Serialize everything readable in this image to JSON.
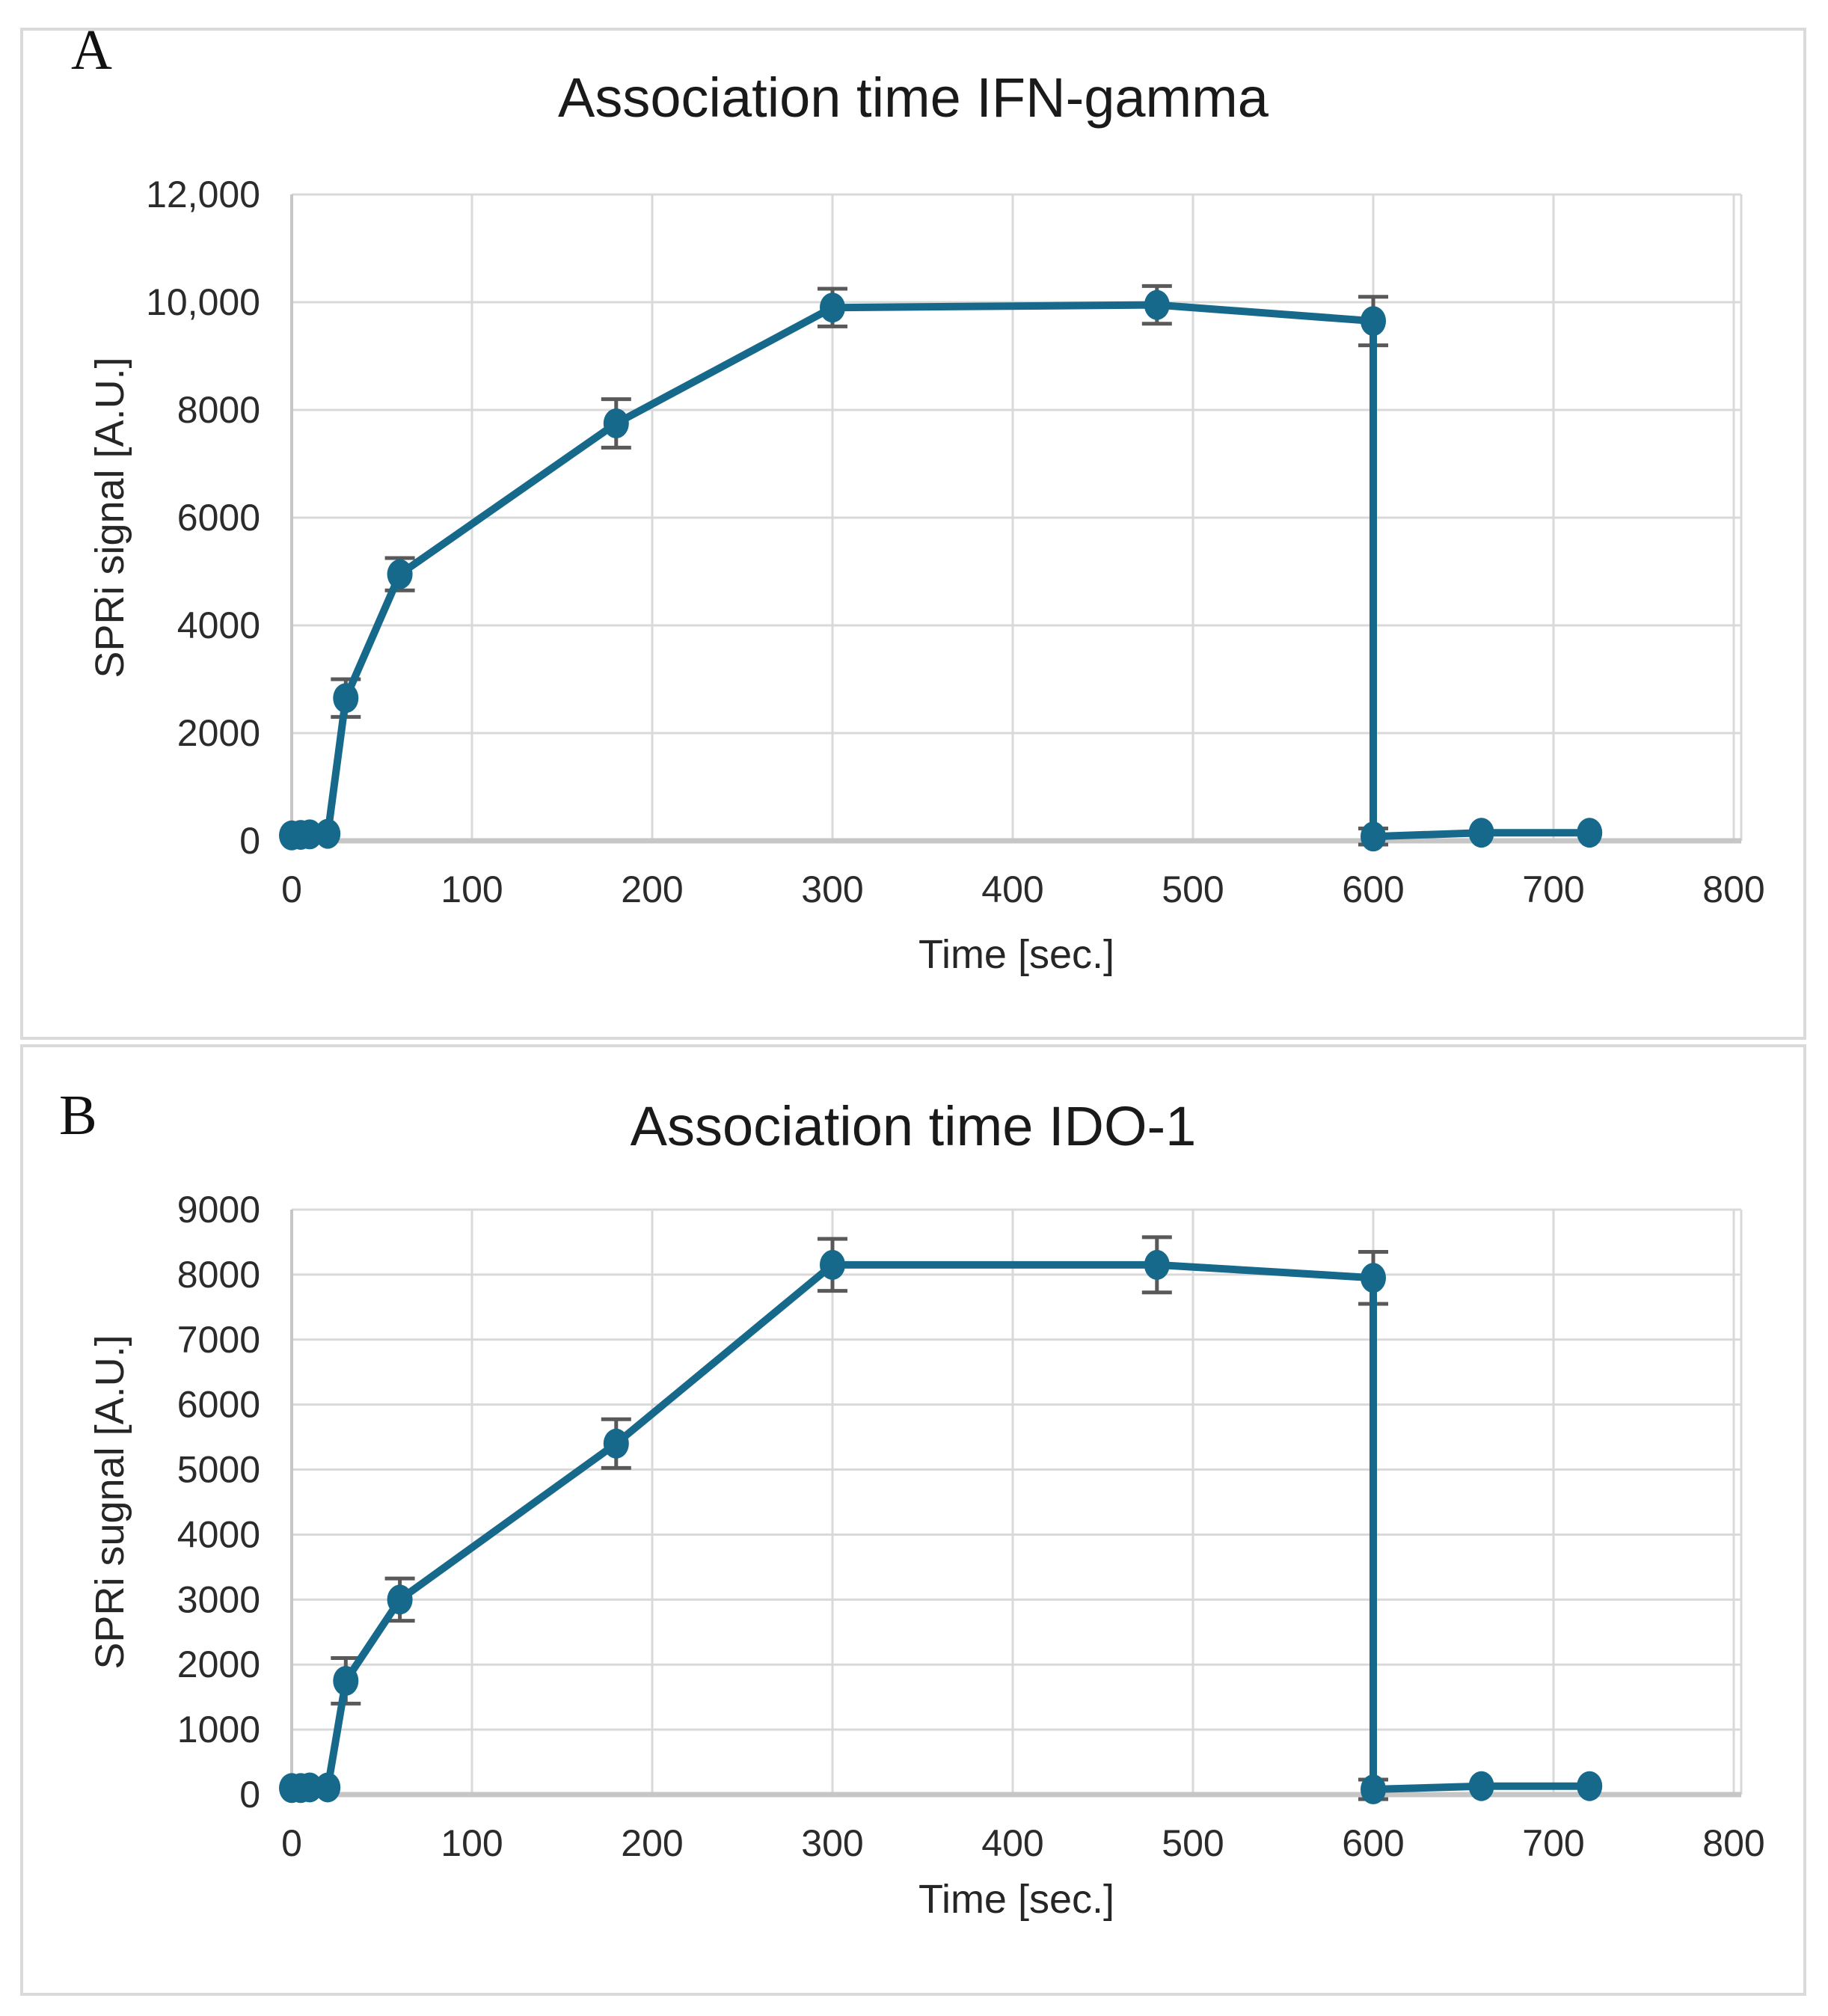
{
  "figure": {
    "background": "#ffffff",
    "panels": [
      {
        "label": "A",
        "title": "Association time IFN-gamma",
        "x_axis_title": "Time [sec.]",
        "y_axis_title": "SPRi signal [A.U.]"
      },
      {
        "label": "B",
        "title": "Association time IDO-1",
        "x_axis_title": "Time [sec.]",
        "y_axis_title": "SPRi sugnal [A.U.]"
      }
    ]
  },
  "chart_data": [
    {
      "type": "line",
      "panel": "A",
      "title": "Association time IFN-gamma",
      "xlabel": "Time [sec.]",
      "ylabel": "SPRi signal [A.U.]",
      "xlim": [
        0,
        800
      ],
      "ylim": [
        0,
        12000
      ],
      "xticks": [
        0,
        100,
        200,
        300,
        400,
        500,
        600,
        700,
        800
      ],
      "xtick_labels": [
        "0",
        "100",
        "200",
        "300",
        "400",
        "500",
        "600",
        "700",
        "800"
      ],
      "yticks": [
        0,
        2000,
        4000,
        6000,
        8000,
        10000,
        12000
      ],
      "ytick_labels": [
        "0",
        "2000",
        "4000",
        "6000",
        "8000",
        "10,000",
        "12,000"
      ],
      "grid": true,
      "legend": "none",
      "error_bars": true,
      "series": [
        {
          "name": "IFN-gamma SPRi signal",
          "marker": "circle",
          "color": "#17698C",
          "x": [
            0,
            5,
            10,
            20,
            30,
            60,
            180,
            300,
            480,
            600,
            600,
            660,
            720
          ],
          "y": [
            100,
            110,
            120,
            130,
            2650,
            4950,
            7750,
            9900,
            9950,
            9650,
            80,
            150,
            150
          ],
          "yerr": [
            0,
            0,
            0,
            0,
            350,
            300,
            450,
            350,
            350,
            450,
            150,
            0,
            0
          ]
        }
      ]
    },
    {
      "type": "line",
      "panel": "B",
      "title": "Association time IDO-1",
      "xlabel": "Time [sec.]",
      "ylabel": "SPRi sugnal [A.U.]",
      "xlim": [
        0,
        800
      ],
      "ylim": [
        0,
        9000
      ],
      "xticks": [
        0,
        100,
        200,
        300,
        400,
        500,
        600,
        700,
        800
      ],
      "xtick_labels": [
        "0",
        "100",
        "200",
        "300",
        "400",
        "500",
        "600",
        "700",
        "800"
      ],
      "yticks": [
        0,
        1000,
        2000,
        3000,
        4000,
        5000,
        6000,
        7000,
        8000,
        9000
      ],
      "ytick_labels": [
        "0",
        "1000",
        "2000",
        "3000",
        "4000",
        "5000",
        "6000",
        "7000",
        "8000",
        "9000"
      ],
      "grid": true,
      "legend": "none",
      "error_bars": true,
      "series": [
        {
          "name": "IDO-1 SPRi signal",
          "marker": "circle",
          "color": "#17698C",
          "x": [
            0,
            5,
            10,
            20,
            30,
            60,
            180,
            300,
            480,
            600,
            600,
            660,
            720
          ],
          "y": [
            100,
            100,
            110,
            110,
            1750,
            3000,
            5400,
            8150,
            8150,
            7950,
            80,
            130,
            130
          ],
          "yerr": [
            0,
            0,
            0,
            0,
            350,
            325,
            375,
            400,
            425,
            400,
            150,
            0,
            0
          ]
        }
      ]
    }
  ],
  "style": {
    "series_color": "#17698C",
    "errorbar_color": "#595959",
    "gridline_color": "#D9D9D9",
    "axis_line_color": "#C6C6C6",
    "tick_text_color": "#2b2b2b",
    "title_color": "#1a1a1a",
    "panel_border_color": "#DADADA"
  }
}
